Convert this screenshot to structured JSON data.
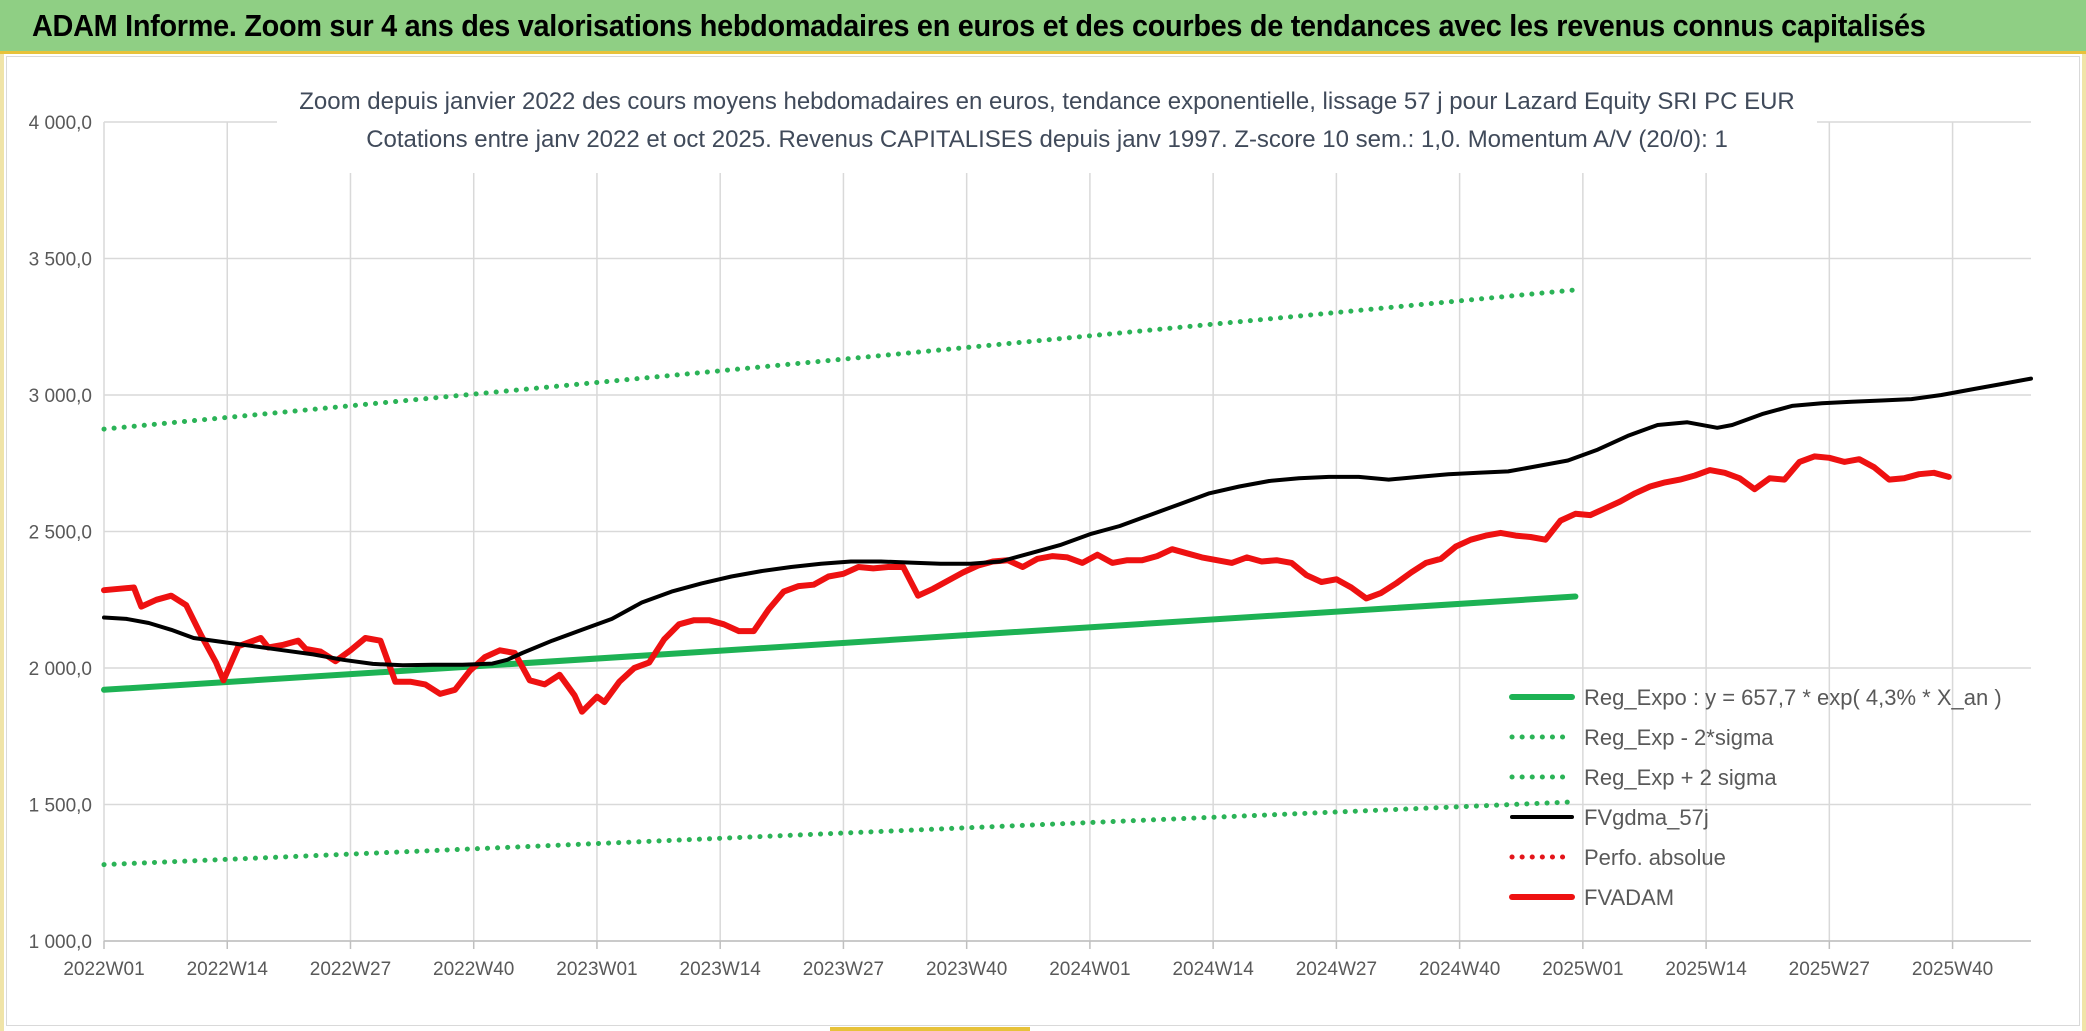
{
  "banner": {
    "title": "ADAM Informe. Zoom sur 4 ans des valorisations hebdomadaires en euros et des courbes de tendances avec les revenus connus capitalisés"
  },
  "colors": {
    "banner_bg": "#8fcf84",
    "trend": "#1db254",
    "sigma": "#2bb357",
    "smooth": "#000000",
    "perf": "#e3151a",
    "fvadam": "#ee1111",
    "grid": "#d9d9d9"
  },
  "chart_data": {
    "type": "line",
    "title": "Zoom depuis janvier 2022 des cours moyens hebdomadaires en euros, tendance exponentielle, lissage 57 j pour Lazard Equity SRI PC EUR",
    "subtitle": "Cotations entre janv 2022 et oct 2025. Revenus CAPITALISES depuis janv 1997. Z-score 10 sem.: 1,0. Momentum A/V (20/0): 1",
    "xlabel": "",
    "ylabel": "",
    "ylim": [
      1000,
      4000
    ],
    "yticks": [
      "1 000,0",
      "1 500,0",
      "2 000,0",
      "2 500,0",
      "3 000,0",
      "3 500,0",
      "4 000,0"
    ],
    "xticks": [
      "2022W01",
      "2022W14",
      "2022W27",
      "2022W40",
      "2023W01",
      "2023W14",
      "2023W27",
      "2023W40",
      "2024W01",
      "2024W14",
      "2024W27",
      "2024W40",
      "2025W01",
      "2025W14",
      "2025W27",
      "2025W40"
    ],
    "grid": true,
    "legend_position": "bottom-right",
    "legend": [
      "Reg_Expo : y = 657,7 * exp( 4,3% *  X_an )",
      "Reg_Exp - 2*sigma",
      "Reg_Exp + 2 sigma",
      "FVgdma_57j",
      "Perfo. absolue",
      "FVADAM"
    ],
    "series": [
      {
        "name": "Reg_Expo : y = 657,7 * exp( 4,3% *  X_an )",
        "style": "solid-thick",
        "color": "#1db254",
        "points": [
          [
            0,
            1920
          ],
          [
            197,
            2262
          ]
        ]
      },
      {
        "name": "Reg_Exp - 2*sigma",
        "style": "dotted",
        "color": "#2bb357",
        "points": [
          [
            0,
            1280
          ],
          [
            197,
            1510
          ]
        ]
      },
      {
        "name": "Reg_Exp + 2 sigma",
        "style": "dotted",
        "color": "#2bb357",
        "points": [
          [
            0,
            2875
          ],
          [
            197,
            3385
          ]
        ]
      },
      {
        "name": "FVgdma_57j",
        "style": "solid",
        "color": "#000000",
        "points": [
          [
            0,
            2185
          ],
          [
            3,
            2180
          ],
          [
            6,
            2165
          ],
          [
            9,
            2140
          ],
          [
            12,
            2110
          ],
          [
            16,
            2095
          ],
          [
            20,
            2080
          ],
          [
            24,
            2065
          ],
          [
            28,
            2050
          ],
          [
            32,
            2030
          ],
          [
            36,
            2015
          ],
          [
            40,
            2010
          ],
          [
            44,
            2012
          ],
          [
            48,
            2012
          ],
          [
            52,
            2016
          ],
          [
            54,
            2030
          ],
          [
            56,
            2055
          ],
          [
            60,
            2100
          ],
          [
            64,
            2140
          ],
          [
            68,
            2180
          ],
          [
            72,
            2240
          ],
          [
            76,
            2280
          ],
          [
            80,
            2310
          ],
          [
            84,
            2335
          ],
          [
            88,
            2355
          ],
          [
            92,
            2370
          ],
          [
            96,
            2382
          ],
          [
            100,
            2390
          ],
          [
            104,
            2390
          ],
          [
            108,
            2386
          ],
          [
            112,
            2382
          ],
          [
            116,
            2382
          ],
          [
            120,
            2390
          ],
          [
            124,
            2420
          ],
          [
            128,
            2450
          ],
          [
            132,
            2490
          ],
          [
            136,
            2520
          ],
          [
            140,
            2560
          ],
          [
            144,
            2600
          ],
          [
            148,
            2640
          ],
          [
            152,
            2665
          ],
          [
            156,
            2685
          ],
          [
            160,
            2695
          ],
          [
            164,
            2700
          ],
          [
            168,
            2700
          ],
          [
            172,
            2690
          ],
          [
            176,
            2700
          ],
          [
            180,
            2710
          ],
          [
            184,
            2715
          ],
          [
            188,
            2720
          ],
          [
            192,
            2740
          ],
          [
            196,
            2760
          ],
          [
            200,
            2800
          ],
          [
            204,
            2850
          ],
          [
            208,
            2890
          ],
          [
            212,
            2900
          ],
          [
            216,
            2880
          ],
          [
            218,
            2890
          ],
          [
            222,
            2930
          ],
          [
            226,
            2960
          ],
          [
            230,
            2970
          ],
          [
            234,
            2975
          ],
          [
            238,
            2980
          ],
          [
            242,
            2985
          ],
          [
            246,
            3000
          ],
          [
            250,
            3020
          ],
          [
            254,
            3040
          ],
          [
            258,
            3060
          ]
        ]
      },
      {
        "name": "Perfo. absolue",
        "style": "dotted",
        "color": "#e3151a",
        "points": []
      },
      {
        "name": "FVADAM",
        "style": "solid-thick",
        "color": "#ee1111",
        "points": [
          [
            0,
            2285
          ],
          [
            2,
            2290
          ],
          [
            4,
            2295
          ],
          [
            5,
            2225
          ],
          [
            7,
            2250
          ],
          [
            9,
            2265
          ],
          [
            11,
            2230
          ],
          [
            13,
            2120
          ],
          [
            15,
            2020
          ],
          [
            16,
            1955
          ],
          [
            18,
            2080
          ],
          [
            21,
            2110
          ],
          [
            22,
            2075
          ],
          [
            24,
            2085
          ],
          [
            26,
            2100
          ],
          [
            27,
            2070
          ],
          [
            29,
            2060
          ],
          [
            31,
            2025
          ],
          [
            33,
            2065
          ],
          [
            35,
            2110
          ],
          [
            37,
            2100
          ],
          [
            39,
            1950
          ],
          [
            41,
            1950
          ],
          [
            43,
            1940
          ],
          [
            45,
            1905
          ],
          [
            47,
            1920
          ],
          [
            49,
            1990
          ],
          [
            51,
            2040
          ],
          [
            53,
            2065
          ],
          [
            55,
            2055
          ],
          [
            57,
            1955
          ],
          [
            59,
            1940
          ],
          [
            61,
            1975
          ],
          [
            63,
            1900
          ],
          [
            64,
            1840
          ],
          [
            66,
            1895
          ],
          [
            67,
            1875
          ],
          [
            69,
            1950
          ],
          [
            71,
            2000
          ],
          [
            73,
            2020
          ],
          [
            75,
            2105
          ],
          [
            77,
            2160
          ],
          [
            79,
            2175
          ],
          [
            81,
            2175
          ],
          [
            83,
            2160
          ],
          [
            85,
            2135
          ],
          [
            87,
            2135
          ],
          [
            89,
            2215
          ],
          [
            91,
            2280
          ],
          [
            93,
            2300
          ],
          [
            95,
            2305
          ],
          [
            97,
            2335
          ],
          [
            99,
            2345
          ],
          [
            101,
            2370
          ],
          [
            103,
            2365
          ],
          [
            105,
            2370
          ],
          [
            107,
            2370
          ],
          [
            109,
            2265
          ],
          [
            111,
            2290
          ],
          [
            113,
            2320
          ],
          [
            115,
            2350
          ],
          [
            117,
            2375
          ],
          [
            119,
            2390
          ],
          [
            121,
            2395
          ],
          [
            123,
            2370
          ],
          [
            125,
            2400
          ],
          [
            127,
            2410
          ],
          [
            129,
            2405
          ],
          [
            131,
            2385
          ],
          [
            133,
            2415
          ],
          [
            135,
            2385
          ],
          [
            137,
            2395
          ],
          [
            139,
            2395
          ],
          [
            141,
            2410
          ],
          [
            143,
            2435
          ],
          [
            145,
            2420
          ],
          [
            147,
            2405
          ],
          [
            149,
            2395
          ],
          [
            151,
            2385
          ],
          [
            153,
            2405
          ],
          [
            155,
            2390
          ],
          [
            157,
            2395
          ],
          [
            159,
            2385
          ],
          [
            161,
            2340
          ],
          [
            163,
            2315
          ],
          [
            165,
            2325
          ],
          [
            167,
            2295
          ],
          [
            169,
            2255
          ],
          [
            171,
            2275
          ],
          [
            173,
            2310
          ],
          [
            175,
            2350
          ],
          [
            177,
            2385
          ],
          [
            179,
            2400
          ],
          [
            181,
            2445
          ],
          [
            183,
            2470
          ],
          [
            185,
            2485
          ],
          [
            187,
            2495
          ],
          [
            189,
            2485
          ],
          [
            191,
            2480
          ],
          [
            193,
            2470
          ],
          [
            195,
            2540
          ],
          [
            197,
            2565
          ],
          [
            199,
            2560
          ],
          [
            201,
            2585
          ],
          [
            203,
            2610
          ],
          [
            205,
            2640
          ],
          [
            207,
            2665
          ],
          [
            209,
            2680
          ],
          [
            211,
            2690
          ],
          [
            213,
            2705
          ],
          [
            215,
            2725
          ],
          [
            217,
            2715
          ],
          [
            219,
            2695
          ],
          [
            221,
            2655
          ],
          [
            223,
            2695
          ],
          [
            225,
            2690
          ],
          [
            227,
            2755
          ],
          [
            229,
            2775
          ],
          [
            231,
            2770
          ],
          [
            233,
            2755
          ],
          [
            235,
            2765
          ],
          [
            237,
            2735
          ],
          [
            239,
            2690
          ],
          [
            241,
            2695
          ],
          [
            243,
            2710
          ],
          [
            245,
            2715
          ],
          [
            247,
            2700
          ]
        ]
      }
    ]
  }
}
